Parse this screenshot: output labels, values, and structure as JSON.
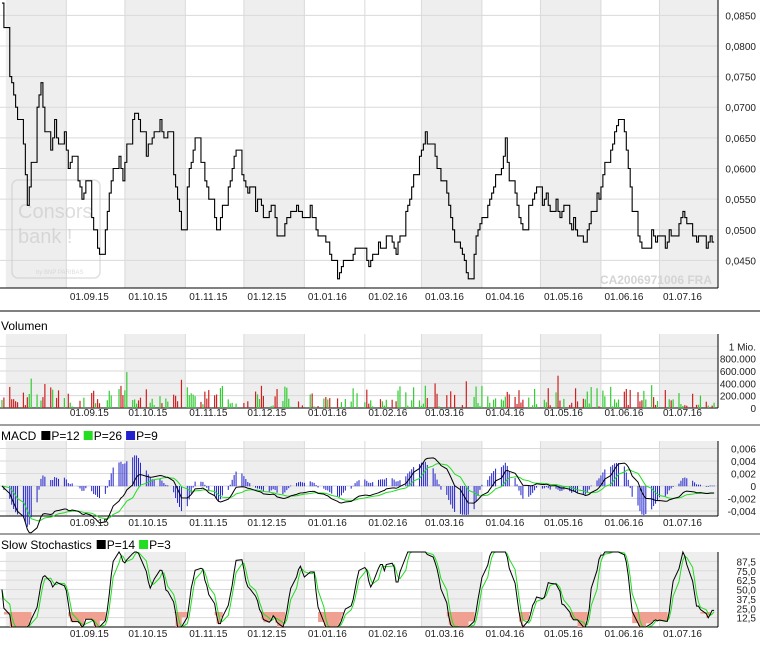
{
  "chart_data": [
    {
      "panel": "price",
      "type": "line",
      "watermark": "CA2006971006 FRA",
      "logo": {
        "line1": "Consors",
        "line2": "bank !",
        "line3": "by BNP PARIBAS"
      },
      "x_tick_labels": [
        "01.09.15",
        "01.10.15",
        "01.11.15",
        "01.12.15",
        "01.01.16",
        "01.02.16",
        "01.03.16",
        "01.04.16",
        "01.05.16",
        "01.06.16",
        "01.07.16"
      ],
      "y_tick_labels": [
        "0,0850",
        "0,0800",
        "0,0750",
        "0,0700",
        "0,0650",
        "0,0600",
        "0,0550",
        "0,0500",
        "0,0450"
      ],
      "y_ticks": [
        0.085,
        0.08,
        0.075,
        0.07,
        0.065,
        0.06,
        0.055,
        0.05,
        0.045
      ],
      "ylim": [
        0.0405,
        0.0875
      ],
      "x_start": "2015-07-29",
      "x_end": "2016-07-31",
      "month_starts": [
        "2015-08-01",
        "2015-09-01",
        "2015-10-01",
        "2015-11-01",
        "2015-12-01",
        "2016-01-01",
        "2016-02-01",
        "2016-03-01",
        "2016-04-01",
        "2016-05-01",
        "2016-06-01",
        "2016-07-01"
      ],
      "shaded_months": [
        "2015-08",
        "2015-10",
        "2015-12",
        "2016-03",
        "2016-05",
        "2016-07"
      ],
      "grid": true,
      "line_color": "#000000",
      "points": [
        [
          "2015-07-30",
          0.087
        ],
        [
          "2015-08-01",
          0.078
        ],
        [
          "2015-08-03",
          0.076
        ],
        [
          "2015-08-05",
          0.072
        ],
        [
          "2015-08-07",
          0.068
        ],
        [
          "2015-08-10",
          0.064
        ],
        [
          "2015-08-12",
          0.054
        ],
        [
          "2015-08-14",
          0.06
        ],
        [
          "2015-08-17",
          0.07
        ],
        [
          "2015-08-19",
          0.074
        ],
        [
          "2015-08-21",
          0.066
        ],
        [
          "2015-08-24",
          0.063
        ],
        [
          "2015-08-26",
          0.068
        ],
        [
          "2015-08-28",
          0.064
        ],
        [
          "2015-08-31",
          0.066
        ],
        [
          "2015-09-02",
          0.06
        ],
        [
          "2015-09-04",
          0.062
        ],
        [
          "2015-09-07",
          0.058
        ],
        [
          "2015-09-09",
          0.055
        ],
        [
          "2015-09-11",
          0.058
        ],
        [
          "2015-09-14",
          0.052
        ],
        [
          "2015-09-16",
          0.049
        ],
        [
          "2015-09-18",
          0.046
        ],
        [
          "2015-09-21",
          0.05
        ],
        [
          "2015-09-23",
          0.056
        ],
        [
          "2015-09-25",
          0.06
        ],
        [
          "2015-09-28",
          0.062
        ],
        [
          "2015-09-30",
          0.058
        ],
        [
          "2015-10-02",
          0.064
        ],
        [
          "2015-10-05",
          0.068
        ],
        [
          "2015-10-07",
          0.07
        ],
        [
          "2015-10-09",
          0.066
        ],
        [
          "2015-10-12",
          0.062
        ],
        [
          "2015-10-14",
          0.064
        ],
        [
          "2015-10-16",
          0.066
        ],
        [
          "2015-10-19",
          0.068
        ],
        [
          "2015-10-21",
          0.064
        ],
        [
          "2015-10-23",
          0.066
        ],
        [
          "2015-10-26",
          0.059
        ],
        [
          "2015-10-28",
          0.055
        ],
        [
          "2015-10-30",
          0.05
        ],
        [
          "2015-11-02",
          0.057
        ],
        [
          "2015-11-04",
          0.061
        ],
        [
          "2015-11-06",
          0.065
        ],
        [
          "2015-11-09",
          0.062
        ],
        [
          "2015-11-11",
          0.058
        ],
        [
          "2015-11-13",
          0.055
        ],
        [
          "2015-11-16",
          0.052
        ],
        [
          "2015-11-18",
          0.05
        ],
        [
          "2015-11-20",
          0.054
        ],
        [
          "2015-11-23",
          0.056
        ],
        [
          "2015-11-25",
          0.06
        ],
        [
          "2015-11-27",
          0.063
        ],
        [
          "2015-11-30",
          0.059
        ],
        [
          "2015-12-02",
          0.057
        ],
        [
          "2015-12-04",
          0.056
        ],
        [
          "2015-12-07",
          0.054
        ],
        [
          "2015-12-09",
          0.055
        ],
        [
          "2015-12-11",
          0.052
        ],
        [
          "2015-12-14",
          0.053
        ],
        [
          "2015-12-16",
          0.055
        ],
        [
          "2015-12-18",
          0.049
        ],
        [
          "2015-12-21",
          0.05
        ],
        [
          "2015-12-23",
          0.052
        ],
        [
          "2015-12-28",
          0.054
        ],
        [
          "2015-12-30",
          0.052
        ],
        [
          "2016-01-04",
          0.054
        ],
        [
          "2016-01-06",
          0.052
        ],
        [
          "2016-01-08",
          0.048
        ],
        [
          "2016-01-11",
          0.049
        ],
        [
          "2016-01-13",
          0.048
        ],
        [
          "2016-01-15",
          0.045
        ],
        [
          "2016-01-18",
          0.042
        ],
        [
          "2016-01-20",
          0.044
        ],
        [
          "2016-01-22",
          0.046
        ],
        [
          "2016-01-25",
          0.045
        ],
        [
          "2016-01-27",
          0.048
        ],
        [
          "2016-01-29",
          0.047
        ],
        [
          "2016-02-01",
          0.046
        ],
        [
          "2016-02-03",
          0.044
        ],
        [
          "2016-02-05",
          0.046
        ],
        [
          "2016-02-08",
          0.048
        ],
        [
          "2016-02-10",
          0.047
        ],
        [
          "2016-02-12",
          0.049
        ],
        [
          "2016-02-15",
          0.048
        ],
        [
          "2016-02-17",
          0.046
        ],
        [
          "2016-02-19",
          0.049
        ],
        [
          "2016-02-22",
          0.052
        ],
        [
          "2016-02-24",
          0.055
        ],
        [
          "2016-02-26",
          0.059
        ],
        [
          "2016-03-01",
          0.063
        ],
        [
          "2016-03-03",
          0.065
        ],
        [
          "2016-03-05",
          0.062
        ],
        [
          "2016-03-07",
          0.064
        ],
        [
          "2016-03-09",
          0.061
        ],
        [
          "2016-03-11",
          0.058
        ],
        [
          "2016-03-14",
          0.056
        ],
        [
          "2016-03-16",
          0.052
        ],
        [
          "2016-03-18",
          0.048
        ],
        [
          "2016-03-21",
          0.047
        ],
        [
          "2016-03-23",
          0.045
        ],
        [
          "2016-03-25",
          0.042
        ],
        [
          "2016-03-28",
          0.046
        ],
        [
          "2016-03-30",
          0.05
        ],
        [
          "2016-04-01",
          0.052
        ],
        [
          "2016-04-04",
          0.054
        ],
        [
          "2016-04-06",
          0.056
        ],
        [
          "2016-04-08",
          0.058
        ],
        [
          "2016-04-11",
          0.06
        ],
        [
          "2016-04-13",
          0.064
        ],
        [
          "2016-04-15",
          0.058
        ],
        [
          "2016-04-18",
          0.056
        ],
        [
          "2016-04-20",
          0.052
        ],
        [
          "2016-04-22",
          0.05
        ],
        [
          "2016-04-25",
          0.054
        ],
        [
          "2016-04-27",
          0.055
        ],
        [
          "2016-04-29",
          0.057
        ],
        [
          "2016-05-02",
          0.054
        ],
        [
          "2016-05-04",
          0.056
        ],
        [
          "2016-05-06",
          0.053
        ],
        [
          "2016-05-09",
          0.055
        ],
        [
          "2016-05-11",
          0.052
        ],
        [
          "2016-05-13",
          0.054
        ],
        [
          "2016-05-16",
          0.05
        ],
        [
          "2016-05-18",
          0.052
        ],
        [
          "2016-05-20",
          0.049
        ],
        [
          "2016-05-23",
          0.048
        ],
        [
          "2016-05-25",
          0.05
        ],
        [
          "2016-05-27",
          0.053
        ],
        [
          "2016-05-30",
          0.055
        ],
        [
          "2016-06-01",
          0.057
        ],
        [
          "2016-06-03",
          0.06
        ],
        [
          "2016-06-06",
          0.063
        ],
        [
          "2016-06-08",
          0.066
        ],
        [
          "2016-06-10",
          0.068
        ],
        [
          "2016-06-13",
          0.066
        ],
        [
          "2016-06-15",
          0.06
        ],
        [
          "2016-06-17",
          0.053
        ],
        [
          "2016-06-20",
          0.049
        ],
        [
          "2016-06-22",
          0.047
        ],
        [
          "2016-06-24",
          0.048
        ],
        [
          "2016-06-27",
          0.05
        ],
        [
          "2016-06-29",
          0.048
        ],
        [
          "2016-07-01",
          0.049
        ],
        [
          "2016-07-04",
          0.047
        ],
        [
          "2016-07-06",
          0.05
        ],
        [
          "2016-07-08",
          0.049
        ],
        [
          "2016-07-11",
          0.051
        ],
        [
          "2016-07-13",
          0.053
        ],
        [
          "2016-07-15",
          0.051
        ],
        [
          "2016-07-18",
          0.05
        ],
        [
          "2016-07-20",
          0.048
        ],
        [
          "2016-07-22",
          0.049
        ],
        [
          "2016-07-25",
          0.047
        ],
        [
          "2016-07-27",
          0.049
        ],
        [
          "2016-07-29",
          0.048
        ]
      ]
    },
    {
      "panel": "volume",
      "type": "bar",
      "title": "Volumen",
      "y_tick_labels": [
        "1 Mio.",
        "800.000",
        "600.000",
        "400.000",
        "200.000",
        "0"
      ],
      "y_ticks": [
        1000000,
        800000,
        600000,
        400000,
        200000,
        0
      ],
      "ylim": [
        0,
        1200000
      ],
      "up_color": "#33cc33",
      "down_color": "#cc2222",
      "grid": true
    },
    {
      "panel": "macd",
      "type": "line",
      "title": "MACD",
      "legend": [
        {
          "label": "P=12",
          "color": "#000000"
        },
        {
          "label": "P=26",
          "color": "#22dd22"
        },
        {
          "label": "P=9",
          "color": "#2222cc"
        }
      ],
      "y_tick_labels": [
        "0,006",
        "0,004",
        "0,002",
        "0",
        "-0,002",
        "-0,004"
      ],
      "y_ticks": [
        0.006,
        0.004,
        0.002,
        0,
        -0.002,
        -0.004
      ],
      "ylim": [
        -0.0048,
        0.0072
      ],
      "grid": true
    },
    {
      "panel": "stochastics",
      "type": "line",
      "title": "Slow Stochastics",
      "legend": [
        {
          "label": "P=14",
          "color": "#000000"
        },
        {
          "label": "P=3",
          "color": "#22dd22"
        }
      ],
      "y_tick_labels": [
        "87,5",
        "75,0",
        "62,5",
        "50,0",
        "37,5",
        "25,0",
        "12,5"
      ],
      "y_ticks": [
        87.5,
        75,
        62.5,
        50,
        37.5,
        25,
        12.5
      ],
      "ylim": [
        0,
        100
      ],
      "oversold_level": 20,
      "oversold_fill": "#f0a090",
      "grid": true
    }
  ]
}
